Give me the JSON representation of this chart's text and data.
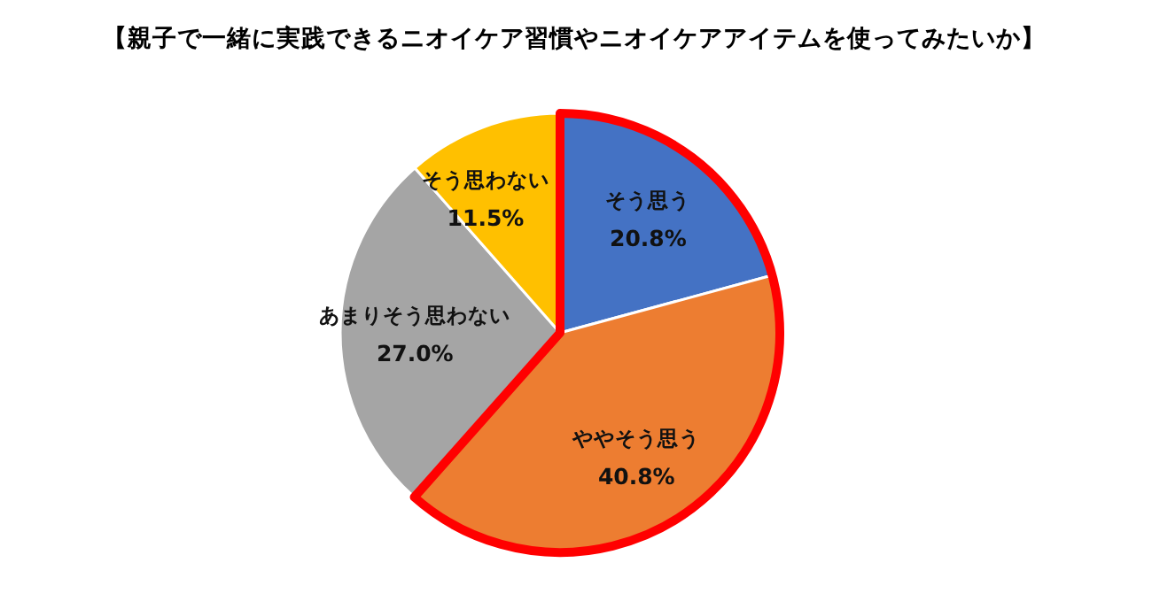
{
  "chart_data": {
    "type": "pie",
    "title": "【親子で一緒に実践できるニオイケア習慣やニオイケアアイテムを使ってみたいか】",
    "categories": [
      "そう思う",
      "ややそう思う",
      "あまりそう思わない",
      "そう思わない"
    ],
    "values": [
      20.8,
      40.8,
      27.0,
      11.5
    ],
    "colors": [
      "#4472c4",
      "#ed7d31",
      "#a5a5a5",
      "#ffc000"
    ],
    "value_labels": [
      "20.8%",
      "40.8%",
      "27.0%",
      "11.5%"
    ]
  }
}
